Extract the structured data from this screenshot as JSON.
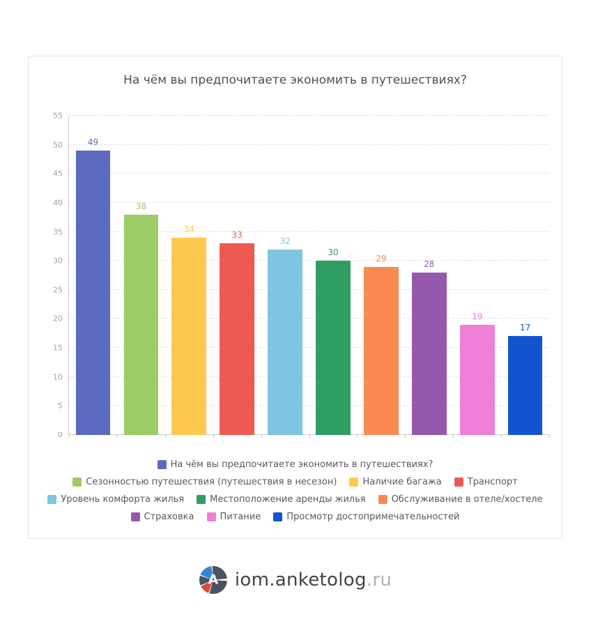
{
  "chart_data": {
    "type": "bar",
    "title": "На чём вы предпочитаете экономить в путешествиях?",
    "categories": [
      "На чём вы предпочитаете экономить в путешествиях?",
      "Сезонностью путешествия (путешествия в несезон)",
      "Наличие багажа",
      "Транспорт",
      "Уровень комфорта жилья",
      "Местоположение аренды жилья",
      "Обслуживание в отеле/хостеле",
      "Страховка",
      "Питание",
      "Просмотр достопримечательностей"
    ],
    "values": [
      49,
      38,
      34,
      33,
      32,
      30,
      29,
      28,
      19,
      17
    ],
    "colors": [
      "#5c6bc0",
      "#9ccc65",
      "#ffc84f",
      "#ee5a52",
      "#7ec5e2",
      "#2f9e63",
      "#fb8a51",
      "#9459ac",
      "#ef7ed8",
      "#1254cf"
    ],
    "xlabel": "",
    "ylabel": "",
    "ylim": [
      0,
      55
    ],
    "yticks": [
      0,
      5,
      10,
      15,
      20,
      25,
      30,
      35,
      40,
      45,
      50,
      55
    ],
    "grid": "horizontal-dashed",
    "legend_position": "bottom"
  },
  "legend": {
    "rows": [
      [
        {
          "label": "На чём вы предпочитаете экономить в путешествиях?",
          "color": "#5c6bc0"
        }
      ],
      [
        {
          "label": "Сезонностью путешествия (путешествия в несезон)",
          "color": "#9ccc65"
        },
        {
          "label": "Наличие багажа",
          "color": "#ffc84f"
        },
        {
          "label": "Транспорт",
          "color": "#ee5a52"
        }
      ],
      [
        {
          "label": "Уровень комфорта жилья",
          "color": "#7ec5e2"
        },
        {
          "label": "Местоположение аренды жилья",
          "color": "#2f9e63"
        },
        {
          "label": "Обслуживание в отеле/хостеле",
          "color": "#fb8a51"
        }
      ],
      [
        {
          "label": "Страховка",
          "color": "#9459ac"
        },
        {
          "label": "Питание",
          "color": "#ef7ed8"
        },
        {
          "label": "Просмотр достопримечательностей",
          "color": "#1254cf"
        }
      ]
    ]
  },
  "footer": {
    "logo_letter": "A",
    "brand": "iom.anketolog",
    "brand_suffix": ".ru"
  }
}
